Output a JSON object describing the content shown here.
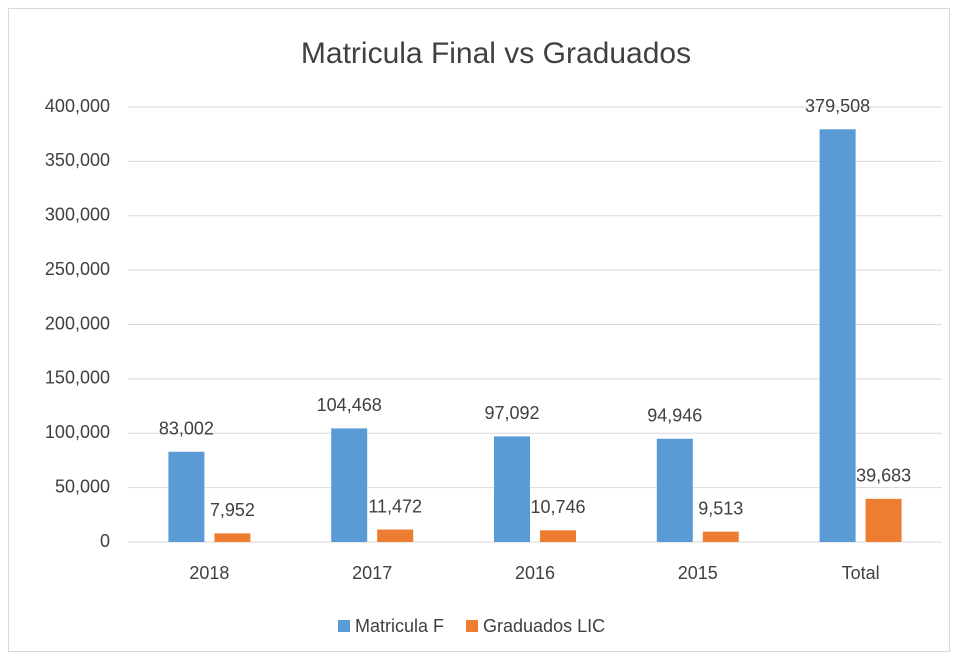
{
  "chart_data": {
    "type": "bar",
    "title": "Matricula Final vs Graduados",
    "categories": [
      "2018",
      "2017",
      "2016",
      "2015",
      "Total"
    ],
    "series": [
      {
        "name": "Matricula F",
        "color": "#5b9bd5",
        "values": [
          83002,
          104468,
          97092,
          94946,
          379508
        ],
        "value_labels": [
          "83,002",
          "104,468",
          "97,092",
          "94,946",
          "379,508"
        ]
      },
      {
        "name": "Graduados LIC",
        "color": "#ed7d31",
        "values": [
          7952,
          11472,
          10746,
          9513,
          39683
        ],
        "value_labels": [
          "7,952",
          "11,472",
          "10,746",
          "9,513",
          "39,683"
        ]
      }
    ],
    "ylim": [
      0,
      400000
    ],
    "yticks": [
      0,
      {
        "value": 50000,
        "label": "50,000"
      },
      {
        "value": 100000,
        "label": "100,000"
      },
      {
        "value": 150000,
        "label": "150,000"
      },
      {
        "value": 200000,
        "label": "200,000"
      },
      {
        "value": 250000,
        "label": "250,000"
      },
      {
        "value": 300000,
        "label": "300,000"
      },
      {
        "value": 350000,
        "label": "350,000"
      },
      {
        "value": 400000,
        "label": "400,000"
      }
    ],
    "grid": true,
    "legend": "bottom"
  }
}
